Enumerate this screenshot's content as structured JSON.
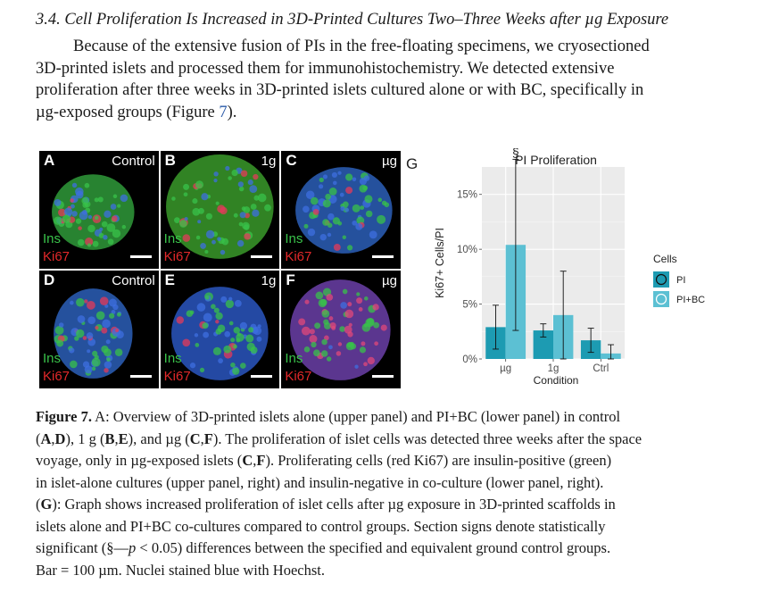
{
  "section": {
    "heading": "3.4. Cell Proliferation Is Increased in 3D-Printed Cultures Two–Three Weeks after µg Exposure",
    "para_lines": [
      "Because of the extensive fusion of PIs in the free-floating specimens, we cryosectioned",
      "3D-printed islets and processed them for immunohistochemistry. We detected extensive",
      "proliferation after three weeks in 3D-printed islets cultured alone or with BC, specifically in",
      "µg-exposed groups (Figure "
    ],
    "para_ref": "7",
    "para_end": ")."
  },
  "figure": {
    "panels": [
      {
        "letter": "A",
        "condition": "Control"
      },
      {
        "letter": "B",
        "condition": "1g"
      },
      {
        "letter": "C",
        "condition": "µg"
      },
      {
        "letter": "D",
        "condition": "Control"
      },
      {
        "letter": "E",
        "condition": "1g"
      },
      {
        "letter": "F",
        "condition": "µg"
      }
    ],
    "stain_ins": "Ins",
    "stain_ki67": "Ki67",
    "graph_letter": "G"
  },
  "chart_data": {
    "type": "bar",
    "title": "PI Proliferation",
    "xlabel": "Condition",
    "ylabel": "Ki67+ Cells/PI",
    "categories": [
      "µg",
      "1g",
      "Ctrl"
    ],
    "yticks": [
      "0%",
      "5%",
      "10%",
      "15%"
    ],
    "ylim": [
      0,
      17.5
    ],
    "legend_title": "Cells",
    "legend_position": "right",
    "series": [
      {
        "name": "PI",
        "color": "#1d9bb2",
        "values": [
          2.9,
          2.6,
          1.7
        ],
        "error": [
          2.0,
          0.6,
          1.1
        ]
      },
      {
        "name": "PI+BC",
        "color": "#5cc0d3",
        "values": [
          10.4,
          4.0,
          0.5
        ],
        "error": [
          7.8,
          4.0,
          0.8
        ]
      }
    ],
    "annotations": [
      {
        "category": "µg",
        "series": "PI+BC",
        "text": "§"
      }
    ],
    "grid": true
  },
  "caption": {
    "lines": [
      "<b>Figure 7.</b> A: Overview of 3D-printed islets alone (upper panel) and PI+BC (lower panel) in control",
      "(<b>A</b>,<b>D</b>), 1 g (<b>B</b>,<b>E</b>), and µg (<b>C</b>,<b>F</b>). The proliferation of islet cells was detected three weeks after the space",
      "voyage, only in µg-exposed islets (<b>C</b>,<b>F</b>). Proliferating cells (red Ki67) are insulin-positive (green)",
      "in islet-alone cultures (upper panel, right) and insulin-negative in co-culture (lower panel, right).",
      "(<b>G</b>): Graph shows increased proliferation of islet cells after µg exposure in 3D-printed scaffolds in",
      "islets alone and PI+BC co-cultures compared to control groups. Section signs denote statistically",
      "significant (§—<i>p</i> &lt; 0.05) differences between the specified and equivalent ground control groups.",
      "Bar = 100 µm. Nuclei stained blue with Hoechst."
    ]
  }
}
